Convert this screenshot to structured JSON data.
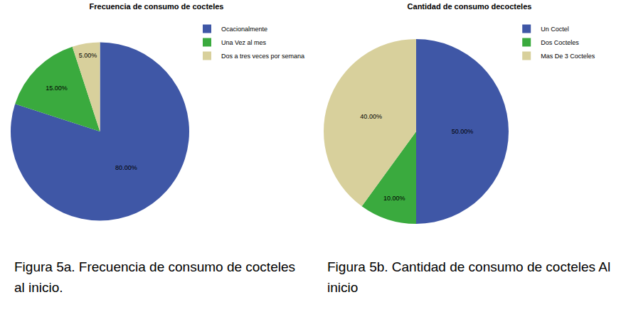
{
  "chart_data": [
    {
      "type": "pie",
      "title": "Frecuencia de consumo de cocteles",
      "categories": [
        "Ocacionalmente",
        "Una Vez al mes",
        "Dos a tres veces por semana"
      ],
      "values": [
        80,
        15,
        5
      ],
      "value_labels": [
        "80.00%",
        "15.00%",
        "5.00%"
      ],
      "colors": [
        "#3f57a6",
        "#3aaa3e",
        "#d8d09c"
      ],
      "data_labels": true,
      "legend": "top right",
      "caption": "Figura 5a. Frecuencia de consumo de cocteles al inicio."
    },
    {
      "type": "pie",
      "title": "Cantidad de consumo decocteles",
      "categories": [
        "Un Coctel",
        "Dos Cocteles",
        "Mas De 3 Cocteles"
      ],
      "values": [
        50,
        10,
        40
      ],
      "value_labels": [
        "50.00%",
        "10.00%",
        "40.00%"
      ],
      "colors": [
        "#3f57a6",
        "#3aaa3e",
        "#d8d09c"
      ],
      "data_labels": true,
      "legend": "top right",
      "caption": "Figura 5b. Cantidad de consumo de cocteles Al inicio"
    }
  ]
}
